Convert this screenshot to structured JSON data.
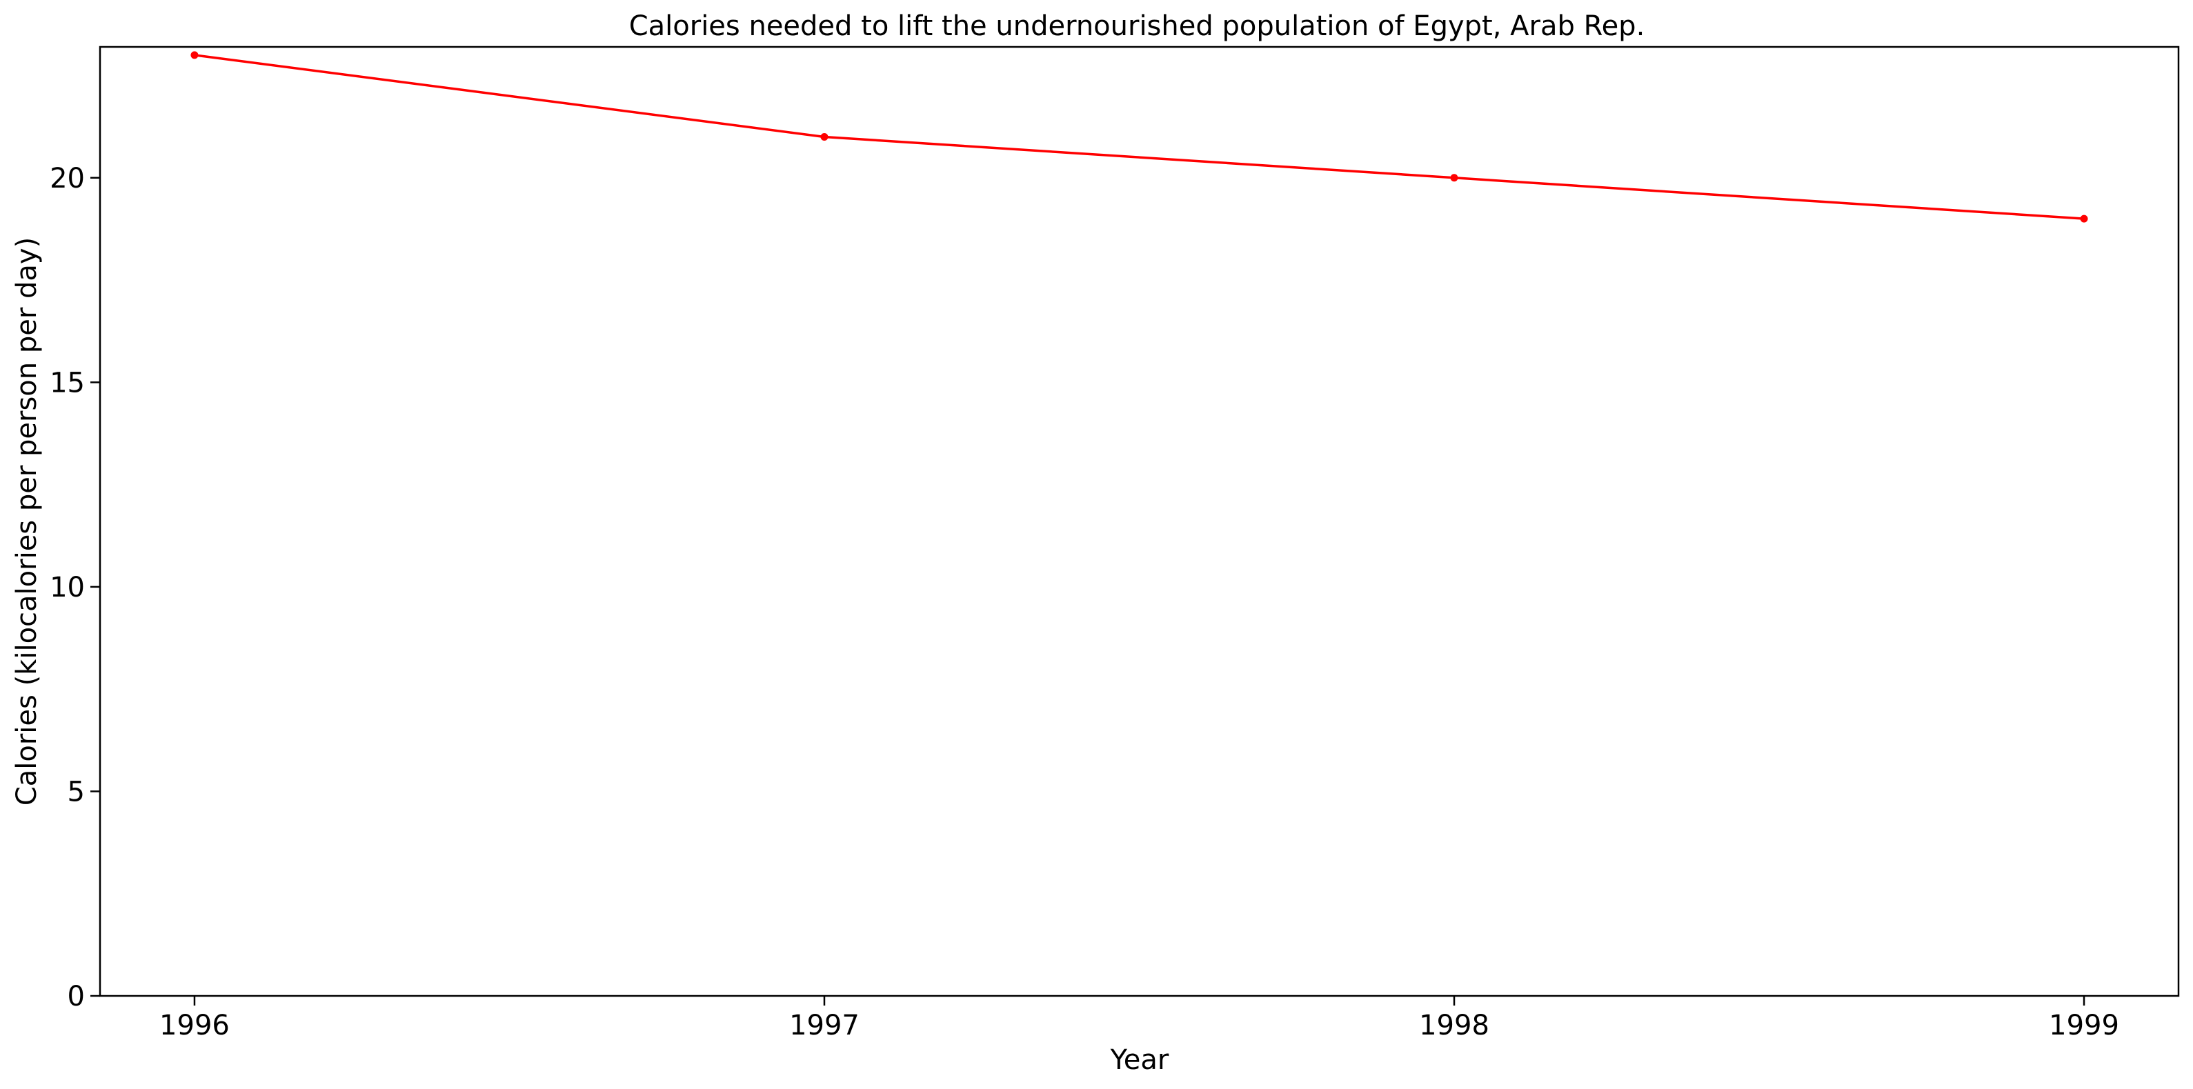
{
  "chart_data": {
    "type": "line",
    "title": "Calories needed to lift the undernourished population of Egypt, Arab Rep.",
    "xlabel": "Year",
    "ylabel": "Calories (kilocalories per person per day)",
    "x": [
      1996,
      1997,
      1998,
      1999
    ],
    "x_tick_labels": [
      "1996",
      "1997",
      "1998",
      "1999"
    ],
    "xlim": [
      1995.85,
      1999.15
    ],
    "ylim": [
      0,
      23.2
    ],
    "y_ticks": [
      0,
      5,
      10,
      15,
      20
    ],
    "y_tick_labels": [
      "0",
      "5",
      "10",
      "15",
      "20"
    ],
    "series": [
      {
        "values": [
          23,
          21,
          20,
          19
        ],
        "color": "#ff0000"
      }
    ],
    "grid": false,
    "legend": "none"
  }
}
